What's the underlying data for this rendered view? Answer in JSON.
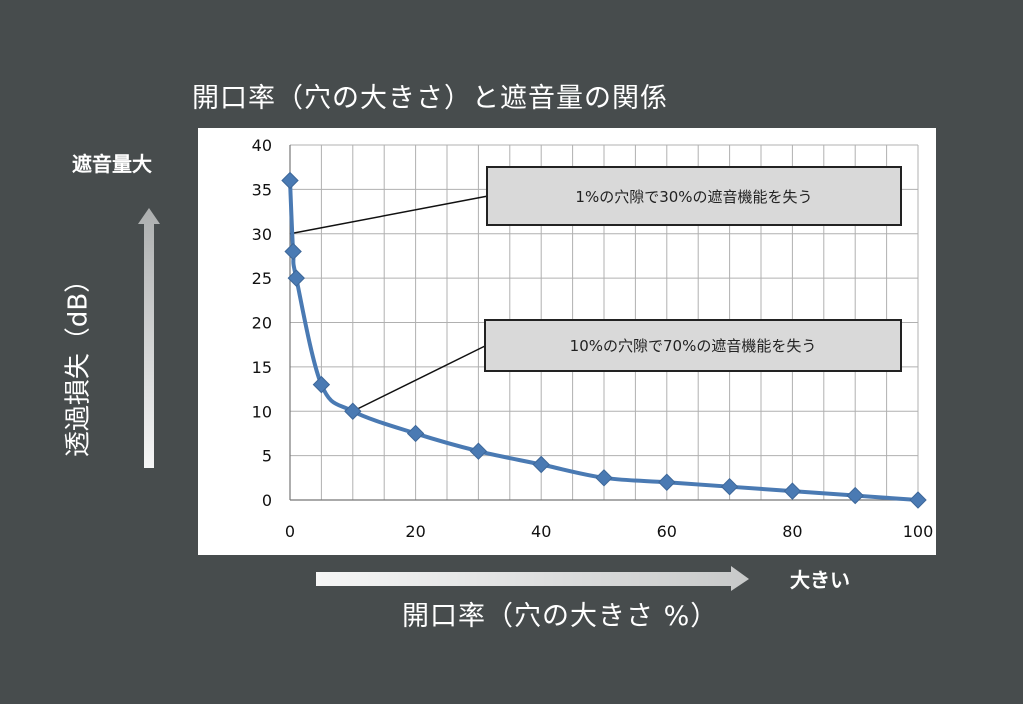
{
  "labels": {
    "y_top": "遮音量大",
    "x_right": "大きい"
  },
  "annotations": [
    {
      "text": "1%の穴隙で30%の遮音機能を失う",
      "x": 0,
      "y": 30
    },
    {
      "text": "10%の穴隙で70%の遮音機能を失う",
      "x": 10,
      "y": 10
    }
  ],
  "chart_data": {
    "type": "line",
    "title": "開口率（穴の大きさ）と遮音量の関係",
    "xlabel": "開口率（穴の大きさ %）",
    "ylabel": "透過損失（dB）",
    "xlim": [
      0,
      100
    ],
    "ylim": [
      0,
      40
    ],
    "xticks": [
      0,
      20,
      40,
      60,
      80,
      100
    ],
    "yticks": [
      0,
      5,
      10,
      15,
      20,
      25,
      30,
      35,
      40
    ],
    "grid": true,
    "x_minor_step": 5,
    "series": [
      {
        "color": "#4a7ab3",
        "marker": "diamond",
        "x": [
          0,
          0.5,
          1,
          5,
          10,
          20,
          30,
          40,
          50,
          60,
          70,
          80,
          90,
          100
        ],
        "y": [
          36,
          28,
          25,
          13,
          10,
          7.5,
          5.5,
          4,
          2.5,
          2,
          1.5,
          1,
          0.5,
          0
        ]
      }
    ]
  },
  "colors": {
    "background": "#474c4d",
    "panel": "#ffffff",
    "grid": "#b0b0b0",
    "callout_fill": "#d9d9d9"
  }
}
